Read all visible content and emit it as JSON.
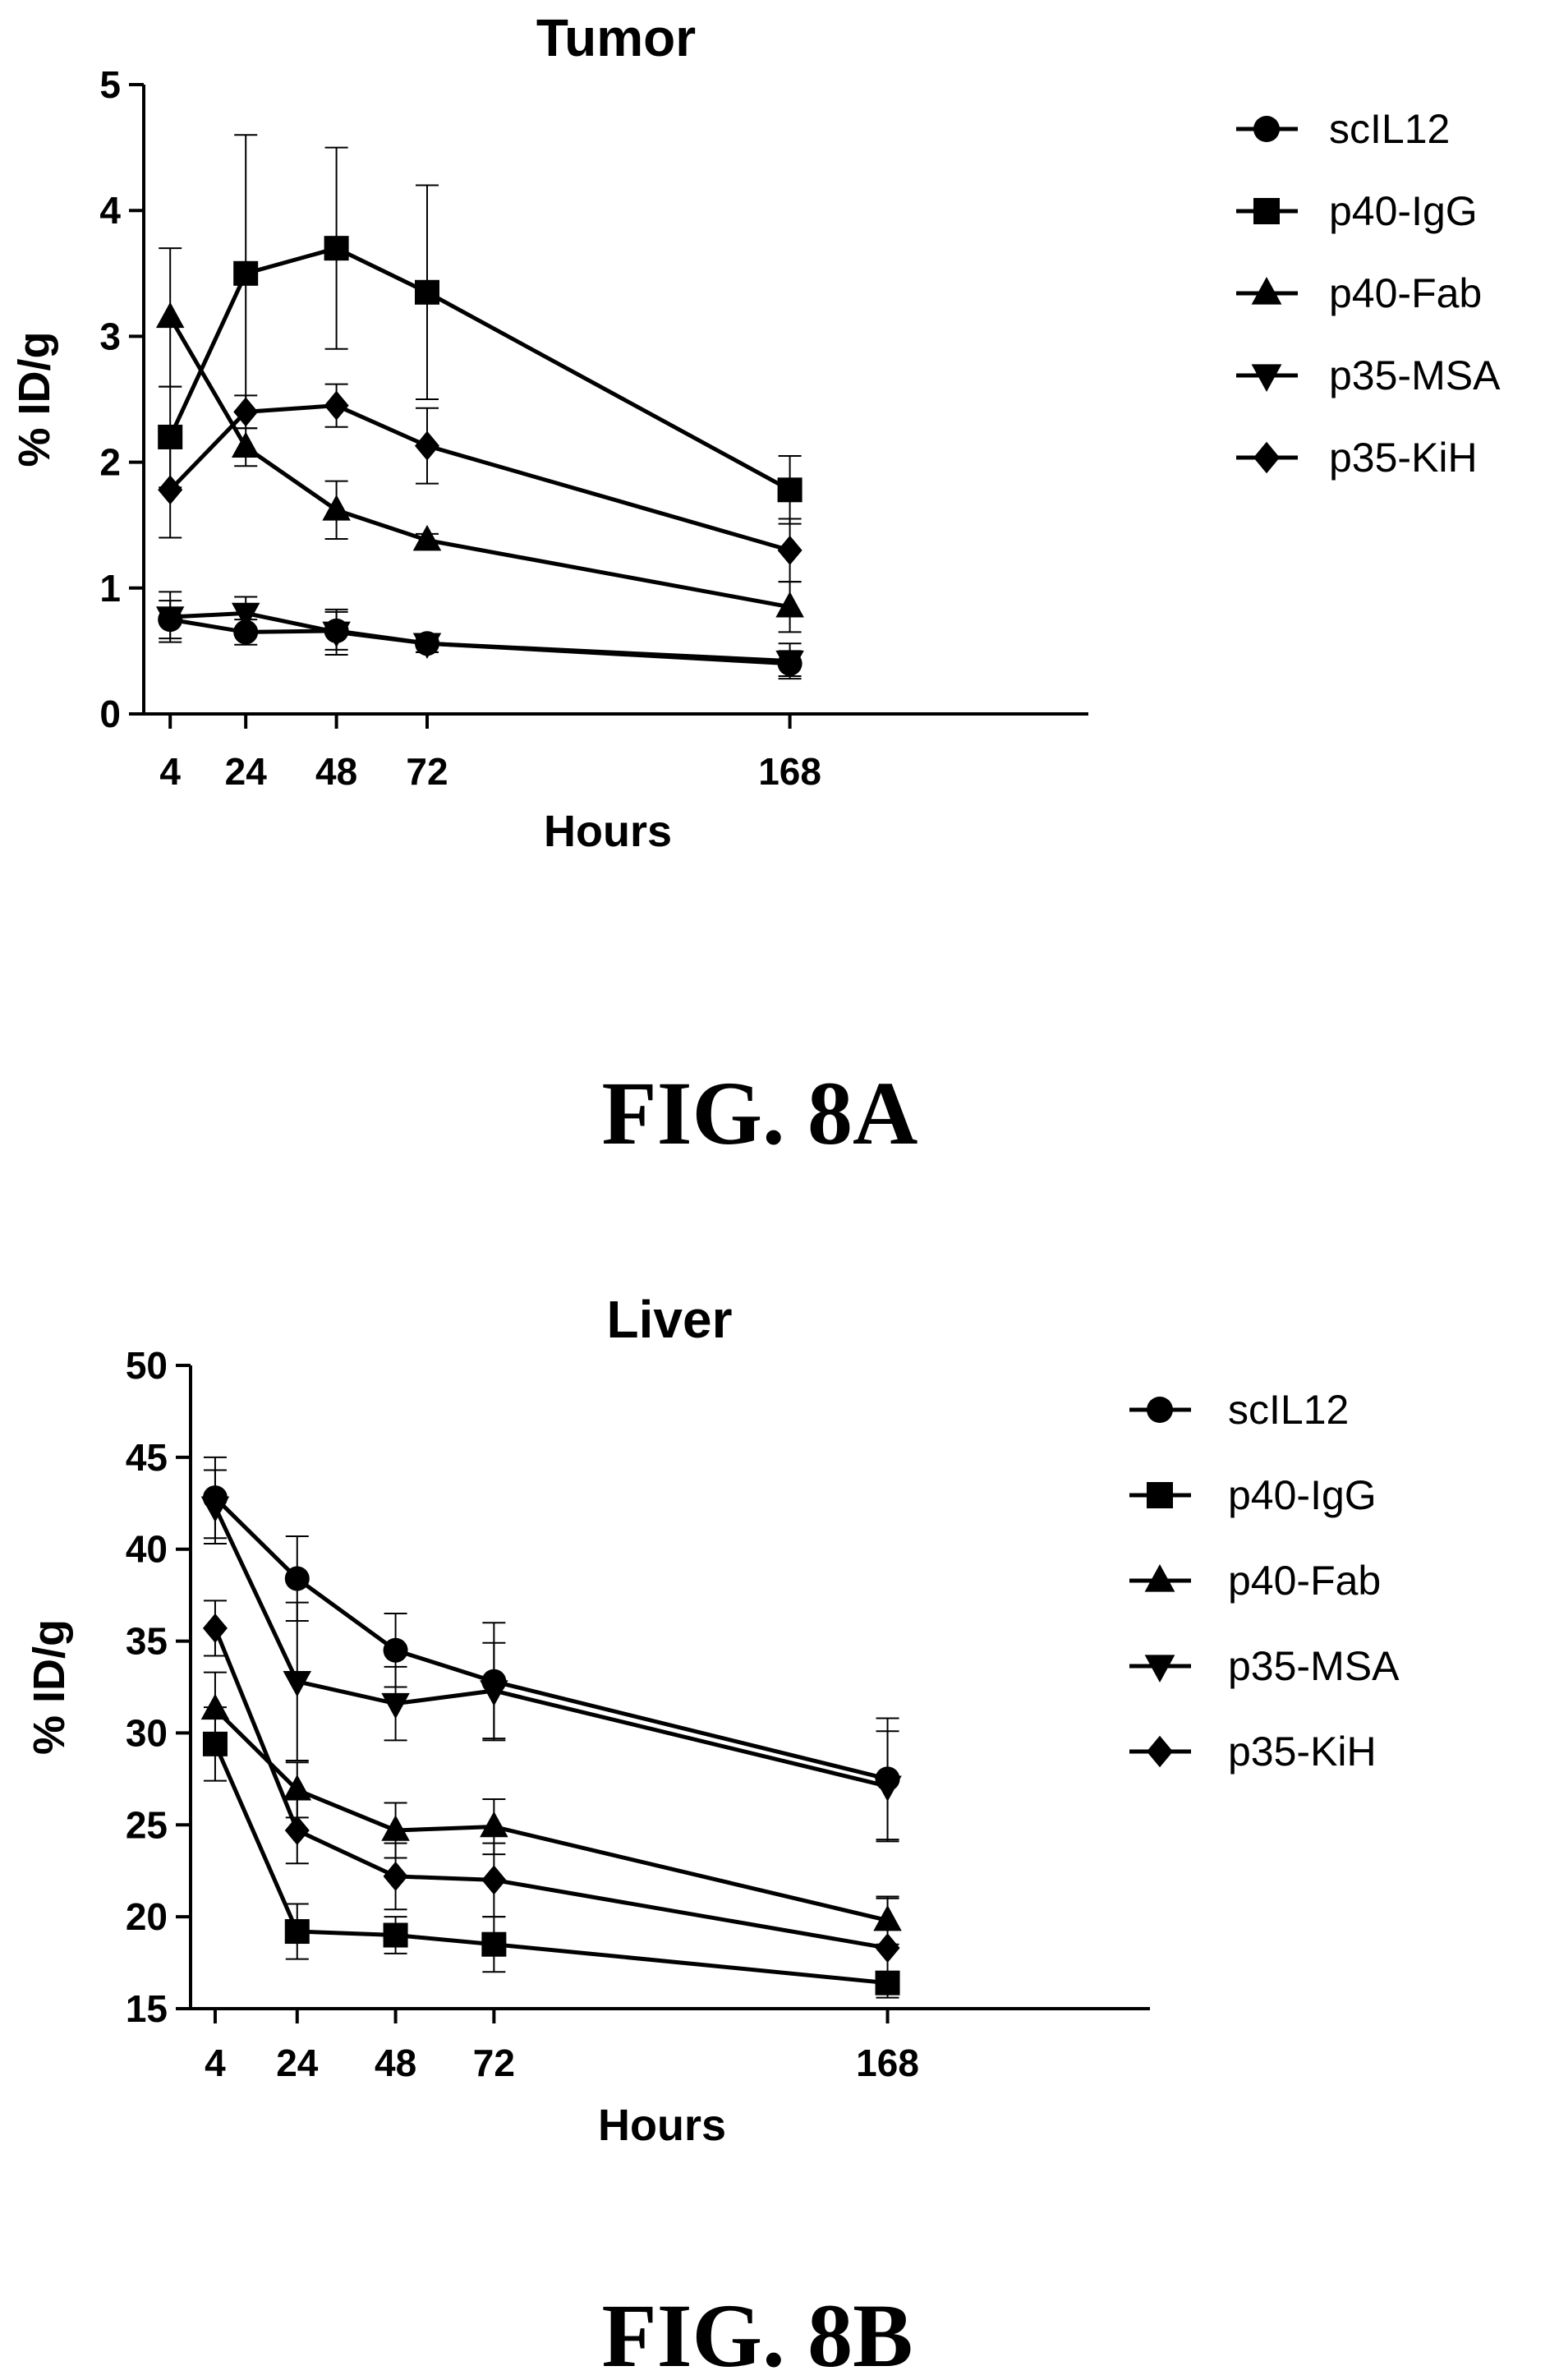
{
  "figure_labels": [
    "FIG. 8A",
    "FIG. 8B"
  ],
  "chart_data": [
    {
      "type": "line",
      "title": "Tumor",
      "xlabel": "Hours",
      "ylabel": "% ID/g",
      "x": [
        4,
        24,
        48,
        72,
        168
      ],
      "x_ticks": [
        "4",
        "24",
        "48",
        "72",
        "168"
      ],
      "ylim": [
        0,
        5
      ],
      "y_ticks": [
        "0",
        "1",
        "2",
        "3",
        "4",
        "5"
      ],
      "legend_position": "top-right",
      "series": [
        {
          "name": "scIL12",
          "marker": "circle",
          "values": [
            0.75,
            0.65,
            0.66,
            0.56,
            0.4
          ],
          "errors": [
            0.15,
            0.1,
            0.15,
            0.07,
            0.1
          ]
        },
        {
          "name": "p40-IgG",
          "marker": "square",
          "values": [
            2.2,
            3.5,
            3.7,
            3.35,
            1.78
          ],
          "errors": [
            0.4,
            1.1,
            0.8,
            0.85,
            0.27
          ]
        },
        {
          "name": "p40-Fab",
          "marker": "triangle-up",
          "values": [
            3.15,
            2.12,
            1.62,
            1.38,
            0.85
          ],
          "errors": [
            0.55,
            0.15,
            0.23,
            0.05,
            0.2
          ]
        },
        {
          "name": "p35-MSA",
          "marker": "triangle-down",
          "values": [
            0.77,
            0.8,
            0.65,
            0.56,
            0.42
          ],
          "errors": [
            0.2,
            0.13,
            0.18,
            0.07,
            0.14
          ]
        },
        {
          "name": "p35-KiH",
          "marker": "diamond",
          "values": [
            1.78,
            2.4,
            2.45,
            2.13,
            1.3
          ],
          "errors": [
            0.38,
            0.13,
            0.17,
            0.3,
            0.25
          ]
        }
      ]
    },
    {
      "type": "line",
      "title": "Liver",
      "xlabel": "Hours",
      "ylabel": "% ID/g",
      "x": [
        4,
        24,
        48,
        72,
        168
      ],
      "x_ticks": [
        "4",
        "24",
        "48",
        "72",
        "168"
      ],
      "ylim": [
        15,
        50
      ],
      "y_ticks": [
        "15",
        "20",
        "25",
        "30",
        "35",
        "40",
        "45",
        "50"
      ],
      "legend_position": "top-right",
      "series": [
        {
          "name": "scIL12",
          "marker": "circle",
          "values": [
            42.8,
            38.4,
            34.5,
            32.8,
            27.5
          ],
          "errors": [
            2.2,
            2.3,
            2.0,
            3.2,
            3.3
          ]
        },
        {
          "name": "p40-IgG",
          "marker": "square",
          "values": [
            29.4,
            19.2,
            19.0,
            18.5,
            16.4
          ],
          "errors": [
            2.0,
            1.5,
            1.0,
            1.5,
            0.5
          ]
        },
        {
          "name": "p40-Fab",
          "marker": "triangle-up",
          "values": [
            31.3,
            26.9,
            24.7,
            24.9,
            19.8
          ],
          "errors": [
            2.0,
            1.5,
            1.5,
            1.5,
            1.3
          ]
        },
        {
          "name": "p35-MSA",
          "marker": "triangle-down",
          "values": [
            42.3,
            32.8,
            31.6,
            32.3,
            27.1
          ],
          "errors": [
            2.0,
            4.3,
            2.0,
            2.6,
            3.0
          ]
        },
        {
          "name": "p35-KiH",
          "marker": "diamond",
          "values": [
            35.7,
            24.7,
            22.2,
            22.0,
            18.3
          ],
          "errors": [
            1.5,
            1.8,
            1.8,
            2.0,
            2.7
          ]
        }
      ]
    }
  ]
}
